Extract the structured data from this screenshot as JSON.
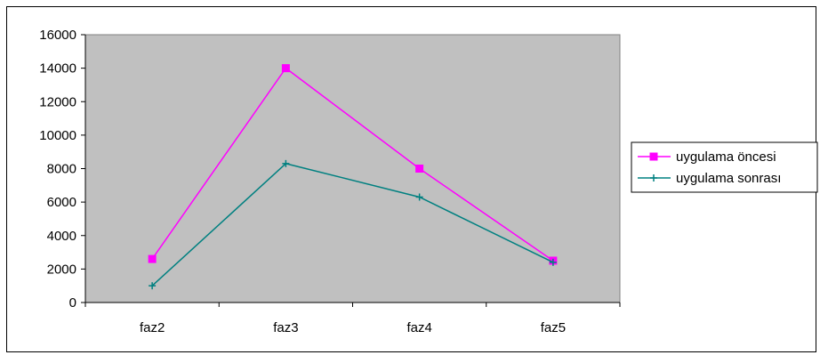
{
  "chart_data": {
    "type": "line",
    "categories": [
      "faz2",
      "faz3",
      "faz4",
      "faz5"
    ],
    "ylim": [
      0,
      16000
    ],
    "yticks": [
      0,
      2000,
      4000,
      6000,
      8000,
      10000,
      12000,
      14000,
      16000
    ],
    "grid": false,
    "legend_position": "right",
    "title": "",
    "xlabel": "",
    "ylabel": "",
    "series": [
      {
        "name": "uygulama öncesi",
        "values": [
          2600,
          14000,
          8000,
          2500
        ],
        "color": "#ff00ff",
        "marker": "square"
      },
      {
        "name": "uygulama sonrası",
        "values": [
          1000,
          8300,
          6300,
          2400
        ],
        "color": "#008080",
        "marker": "plus"
      }
    ],
    "plot_background": "#c0c0c0"
  }
}
